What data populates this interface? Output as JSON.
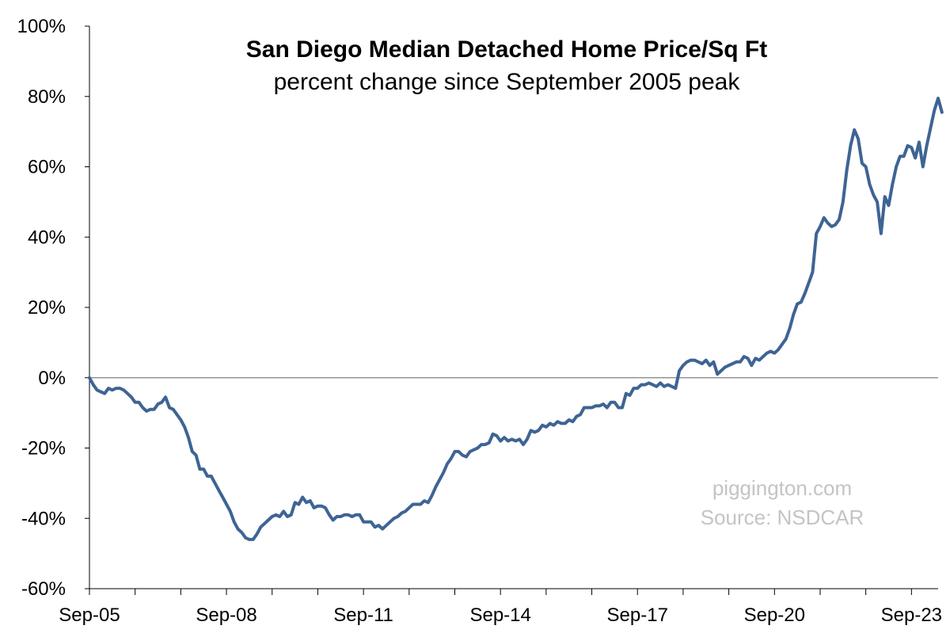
{
  "chart_data": {
    "type": "line",
    "title": "San Diego Median Detached Home Price/Sq Ft",
    "subtitle": "percent change since September 2005 peak",
    "xlabel": "",
    "ylabel": "",
    "ylim": [
      -60,
      100
    ],
    "y_ticks": [
      -60,
      -40,
      -20,
      0,
      20,
      40,
      60,
      80,
      100
    ],
    "y_tick_labels": [
      "-60%",
      "-40%",
      "-20%",
      "0%",
      "20%",
      "40%",
      "60%",
      "80%",
      "100%"
    ],
    "x_tick_labels": [
      "Sep-05",
      "Sep-08",
      "Sep-11",
      "Sep-14",
      "Sep-17",
      "Sep-20",
      "Sep-23"
    ],
    "x_tick_dates": [
      "2005-09",
      "2008-09",
      "2011-09",
      "2014-09",
      "2017-09",
      "2020-09",
      "2023-09"
    ],
    "x_range": [
      "2005-09",
      "2024-04"
    ],
    "grid": false,
    "zero_line": true,
    "series": [
      {
        "color": "#3e6494",
        "points": [
          [
            "2005-09",
            0
          ],
          [
            "2005-10",
            -2
          ],
          [
            "2005-11",
            -3.5
          ],
          [
            "2005-12",
            -4
          ],
          [
            "2006-01",
            -4.5
          ],
          [
            "2006-02",
            -3
          ],
          [
            "2006-03",
            -3.5
          ],
          [
            "2006-04",
            -3
          ],
          [
            "2006-05",
            -3
          ],
          [
            "2006-06",
            -3.5
          ],
          [
            "2006-07",
            -4.5
          ],
          [
            "2006-08",
            -5.5
          ],
          [
            "2006-09",
            -7
          ],
          [
            "2006-10",
            -7
          ],
          [
            "2006-11",
            -8.5
          ],
          [
            "2006-12",
            -9.5
          ],
          [
            "2007-01",
            -9
          ],
          [
            "2007-02",
            -9
          ],
          [
            "2007-03",
            -7.5
          ],
          [
            "2007-04",
            -7
          ],
          [
            "2007-05",
            -5.5
          ],
          [
            "2007-06",
            -8.5
          ],
          [
            "2007-07",
            -9
          ],
          [
            "2007-08",
            -10.5
          ],
          [
            "2007-09",
            -12
          ],
          [
            "2007-10",
            -14
          ],
          [
            "2007-11",
            -17
          ],
          [
            "2007-12",
            -21
          ],
          [
            "2008-01",
            -22
          ],
          [
            "2008-02",
            -26
          ],
          [
            "2008-03",
            -26
          ],
          [
            "2008-04",
            -28
          ],
          [
            "2008-05",
            -28
          ],
          [
            "2008-06",
            -30
          ],
          [
            "2008-07",
            -32
          ],
          [
            "2008-08",
            -34
          ],
          [
            "2008-09",
            -36
          ],
          [
            "2008-10",
            -38
          ],
          [
            "2008-11",
            -41
          ],
          [
            "2008-12",
            -43
          ],
          [
            "2009-01",
            -44
          ],
          [
            "2009-02",
            -45.5
          ],
          [
            "2009-03",
            -46
          ],
          [
            "2009-04",
            -46
          ],
          [
            "2009-05",
            -44.5
          ],
          [
            "2009-06",
            -42.5
          ],
          [
            "2009-07",
            -41.5
          ],
          [
            "2009-08",
            -40.5
          ],
          [
            "2009-09",
            -39.5
          ],
          [
            "2009-10",
            -39
          ],
          [
            "2009-11",
            -39.5
          ],
          [
            "2009-12",
            -38
          ],
          [
            "2010-01",
            -39.5
          ],
          [
            "2010-02",
            -39
          ],
          [
            "2010-03",
            -35.5
          ],
          [
            "2010-04",
            -36
          ],
          [
            "2010-05",
            -34
          ],
          [
            "2010-06",
            -35.5
          ],
          [
            "2010-07",
            -35
          ],
          [
            "2010-08",
            -37
          ],
          [
            "2010-09",
            -36.5
          ],
          [
            "2010-10",
            -36.5
          ],
          [
            "2010-11",
            -37
          ],
          [
            "2010-12",
            -39
          ],
          [
            "2011-01",
            -40.5
          ],
          [
            "2011-02",
            -39.5
          ],
          [
            "2011-03",
            -39.5
          ],
          [
            "2011-04",
            -39
          ],
          [
            "2011-05",
            -39
          ],
          [
            "2011-06",
            -39.5
          ],
          [
            "2011-07",
            -39
          ],
          [
            "2011-08",
            -39
          ],
          [
            "2011-09",
            -41
          ],
          [
            "2011-10",
            -41
          ],
          [
            "2011-11",
            -41
          ],
          [
            "2011-12",
            -42.5
          ],
          [
            "2012-01",
            -42
          ],
          [
            "2012-02",
            -43
          ],
          [
            "2012-03",
            -42
          ],
          [
            "2012-04",
            -41
          ],
          [
            "2012-05",
            -40
          ],
          [
            "2012-06",
            -39.5
          ],
          [
            "2012-07",
            -38.5
          ],
          [
            "2012-08",
            -38
          ],
          [
            "2012-09",
            -37
          ],
          [
            "2012-10",
            -36
          ],
          [
            "2012-11",
            -36
          ],
          [
            "2012-12",
            -36
          ],
          [
            "2013-01",
            -35
          ],
          [
            "2013-02",
            -35.5
          ],
          [
            "2013-03",
            -33.5
          ],
          [
            "2013-04",
            -31
          ],
          [
            "2013-05",
            -29
          ],
          [
            "2013-06",
            -27
          ],
          [
            "2013-07",
            -24.5
          ],
          [
            "2013-08",
            -23
          ],
          [
            "2013-09",
            -21
          ],
          [
            "2013-10",
            -21
          ],
          [
            "2013-11",
            -22
          ],
          [
            "2013-12",
            -22.5
          ],
          [
            "2014-01",
            -21
          ],
          [
            "2014-02",
            -20.5
          ],
          [
            "2014-03",
            -20
          ],
          [
            "2014-04",
            -19
          ],
          [
            "2014-05",
            -19
          ],
          [
            "2014-06",
            -18.5
          ],
          [
            "2014-07",
            -16
          ],
          [
            "2014-08",
            -16.5
          ],
          [
            "2014-09",
            -18
          ],
          [
            "2014-10",
            -17
          ],
          [
            "2014-11",
            -18
          ],
          [
            "2014-12",
            -17.5
          ],
          [
            "2015-01",
            -18
          ],
          [
            "2015-02",
            -17.5
          ],
          [
            "2015-03",
            -19
          ],
          [
            "2015-04",
            -17.5
          ],
          [
            "2015-05",
            -15
          ],
          [
            "2015-06",
            -15.5
          ],
          [
            "2015-07",
            -15
          ],
          [
            "2015-08",
            -13.5
          ],
          [
            "2015-09",
            -14
          ],
          [
            "2015-10",
            -13
          ],
          [
            "2015-11",
            -13.5
          ],
          [
            "2015-12",
            -12.5
          ],
          [
            "2016-01",
            -13
          ],
          [
            "2016-02",
            -13
          ],
          [
            "2016-03",
            -12
          ],
          [
            "2016-04",
            -12.5
          ],
          [
            "2016-05",
            -11
          ],
          [
            "2016-06",
            -10.5
          ],
          [
            "2016-07",
            -8.5
          ],
          [
            "2016-08",
            -8.5
          ],
          [
            "2016-09",
            -8.5
          ],
          [
            "2016-10",
            -8
          ],
          [
            "2016-11",
            -8
          ],
          [
            "2016-12",
            -7.5
          ],
          [
            "2017-01",
            -8.5
          ],
          [
            "2017-02",
            -7
          ],
          [
            "2017-03",
            -7
          ],
          [
            "2017-04",
            -8.5
          ],
          [
            "2017-05",
            -8.5
          ],
          [
            "2017-06",
            -4.5
          ],
          [
            "2017-07",
            -5
          ],
          [
            "2017-08",
            -3
          ],
          [
            "2017-09",
            -3
          ],
          [
            "2017-10",
            -2
          ],
          [
            "2017-11",
            -2
          ],
          [
            "2017-12",
            -1.5
          ],
          [
            "2018-01",
            -2
          ],
          [
            "2018-02",
            -2.5
          ],
          [
            "2018-03",
            -1.5
          ],
          [
            "2018-04",
            -2.5
          ],
          [
            "2018-05",
            -2
          ],
          [
            "2018-06",
            -2.5
          ],
          [
            "2018-07",
            -3
          ],
          [
            "2018-08",
            2
          ],
          [
            "2018-09",
            3.5
          ],
          [
            "2018-10",
            4.5
          ],
          [
            "2018-11",
            5
          ],
          [
            "2018-12",
            5
          ],
          [
            "2019-01",
            4.5
          ],
          [
            "2019-02",
            4
          ],
          [
            "2019-03",
            5
          ],
          [
            "2019-04",
            3.5
          ],
          [
            "2019-05",
            4.5
          ],
          [
            "2019-06",
            1
          ],
          [
            "2019-07",
            2
          ],
          [
            "2019-08",
            3
          ],
          [
            "2019-09",
            3.5
          ],
          [
            "2019-10",
            4
          ],
          [
            "2019-11",
            4.5
          ],
          [
            "2019-12",
            4.5
          ],
          [
            "2020-01",
            6
          ],
          [
            "2020-02",
            5.5
          ],
          [
            "2020-03",
            3.5
          ],
          [
            "2020-04",
            5.5
          ],
          [
            "2020-05",
            5
          ],
          [
            "2020-06",
            6
          ],
          [
            "2020-07",
            7
          ],
          [
            "2020-08",
            7.5
          ],
          [
            "2020-09",
            7
          ],
          [
            "2020-10",
            8
          ],
          [
            "2020-11",
            9.5
          ],
          [
            "2020-12",
            11
          ],
          [
            "2021-01",
            14
          ],
          [
            "2021-02",
            18
          ],
          [
            "2021-03",
            21
          ],
          [
            "2021-04",
            21.5
          ],
          [
            "2021-05",
            24
          ],
          [
            "2021-06",
            27
          ],
          [
            "2021-07",
            30
          ],
          [
            "2021-08",
            41
          ],
          [
            "2021-09",
            43
          ],
          [
            "2021-10",
            45.5
          ],
          [
            "2021-11",
            44
          ],
          [
            "2021-12",
            43
          ],
          [
            "2022-01",
            43.5
          ],
          [
            "2022-02",
            45
          ],
          [
            "2022-03",
            50
          ],
          [
            "2022-04",
            59
          ],
          [
            "2022-05",
            66
          ],
          [
            "2022-06",
            70.5
          ],
          [
            "2022-07",
            68
          ],
          [
            "2022-08",
            61
          ],
          [
            "2022-09",
            60
          ],
          [
            "2022-10",
            55
          ],
          [
            "2022-11",
            52
          ],
          [
            "2022-12",
            50
          ],
          [
            "2023-01",
            41
          ],
          [
            "2023-02",
            51.5
          ],
          [
            "2023-03",
            49
          ],
          [
            "2023-04",
            55
          ],
          [
            "2023-05",
            60
          ],
          [
            "2023-06",
            63
          ],
          [
            "2023-07",
            63
          ],
          [
            "2023-08",
            66
          ],
          [
            "2023-09",
            65.5
          ],
          [
            "2023-10",
            62.5
          ],
          [
            "2023-11",
            67
          ],
          [
            "2023-12",
            60
          ],
          [
            "2024-01",
            66
          ],
          [
            "2024-02",
            71
          ],
          [
            "2024-03",
            76
          ],
          [
            "2024-04",
            79.5
          ],
          [
            "2024-05",
            75.5
          ]
        ]
      }
    ],
    "annotations": [
      "piggington.com",
      "Source: NSDCAR"
    ]
  }
}
